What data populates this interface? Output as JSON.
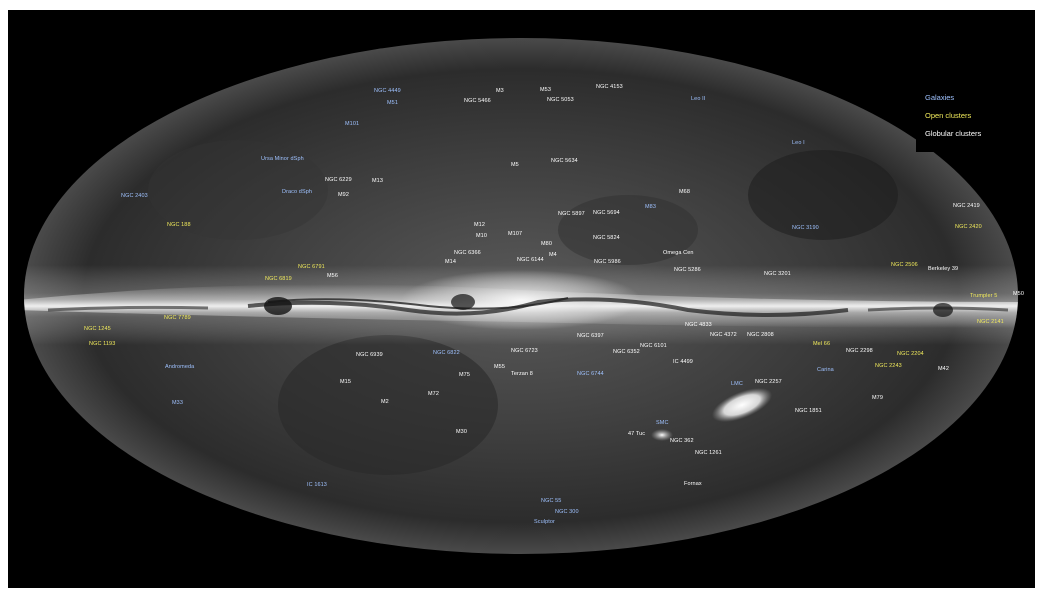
{
  "legend": {
    "galaxies": "Galaxies",
    "open_clusters": "Open clusters",
    "globular_clusters": "Globular clusters"
  },
  "colors": {
    "galaxies": "#9fc2ff",
    "open_clusters": "#f2eb5c",
    "globular_clusters": "#ffffff",
    "sky_background": "#000000"
  },
  "labels": {
    "ngc4449": "NGC 4449",
    "m3": "M3",
    "m53": "M53",
    "ngc4153": "NGC 4153",
    "m51": "M51",
    "ngc5466": "NGC 5466",
    "ngc5053": "NGC 5053",
    "leo2": "Leo II",
    "m101": "M101",
    "leo1": "Leo I",
    "ursa_minor": "Ursa Minor dSph",
    "ngc5634": "NGC 5634",
    "m5": "M5",
    "ngc6229": "NGC 6229",
    "m13": "M13",
    "draco": "Draco dSph",
    "m92": "M92",
    "ngc2403": "NGC 2403",
    "m68": "M68",
    "ngc2419": "NGC 2419",
    "m83": "M83",
    "ngc5897": "NGC 5897",
    "ngc5694": "NGC 5694",
    "ngc188": "NGC 188",
    "m12": "M12",
    "m10": "M10",
    "m107": "M107",
    "ngc3190": "NGC 3190",
    "ngc2420": "NGC 2420",
    "ngc5824": "NGC 5824",
    "m80": "M80",
    "m4": "M4",
    "ngc6366": "NGC 6366",
    "m14": "M14",
    "ngc6144": "NGC 6144",
    "ngc5986": "NGC 5986",
    "omega_cen": "Omega Cen",
    "ngc6791": "NGC 6791",
    "ngc6819": "NGC 6819",
    "m56": "M56",
    "ngc5286": "NGC 5286",
    "ngc3201": "NGC 3201",
    "ngc2506": "NGC 2506",
    "berkeley39": "Berkeley 39",
    "trumpler5": "Trumpler 5",
    "m50": "M50",
    "ngc7789": "NGC 7789",
    "ngc2141": "NGC 2141",
    "ngc1245": "NGC 1245",
    "ngc4833": "NGC 4833",
    "ngc4372": "NGC 4372",
    "ngc2808": "NGC 2808",
    "ngc6101": "NGC 6101",
    "ngc1193": "NGC 1193",
    "ngc6397": "NGC 6397",
    "ngc6352": "NGC 6352",
    "mel66": "Mel 66",
    "ngc2298": "NGC 2298",
    "ngc2204": "NGC 2204",
    "ngc6939": "NGC 6939",
    "ngc6822": "NGC 6822",
    "ngc6723": "NGC 6723",
    "ngc6362": "NGC 6362",
    "ic4499": "IC 4499",
    "ngc2243": "NGC 2243",
    "andromeda": "Andromeda",
    "m55": "M55",
    "terzan8": "Terzan 8",
    "m75": "M75",
    "ngc6744": "NGC 6744",
    "carina": "Carina",
    "m42": "M42",
    "m15": "M15",
    "lmc": "LMC",
    "ngc2257": "NGC 2257",
    "m72": "M72",
    "m2": "M2",
    "m79": "M79",
    "m33": "M33",
    "ngc1851": "NGC 1851",
    "smc": "SMC",
    "m30": "M30",
    "tuc47": "47 Tuc",
    "ngc362": "NGC 362",
    "ngc1261": "NGC 1261",
    "ic1613": "IC 1613",
    "fornax": "Fornax",
    "ngc55": "NGC 55",
    "ngc300": "NGC 300",
    "sculptor": "Sculptor"
  }
}
